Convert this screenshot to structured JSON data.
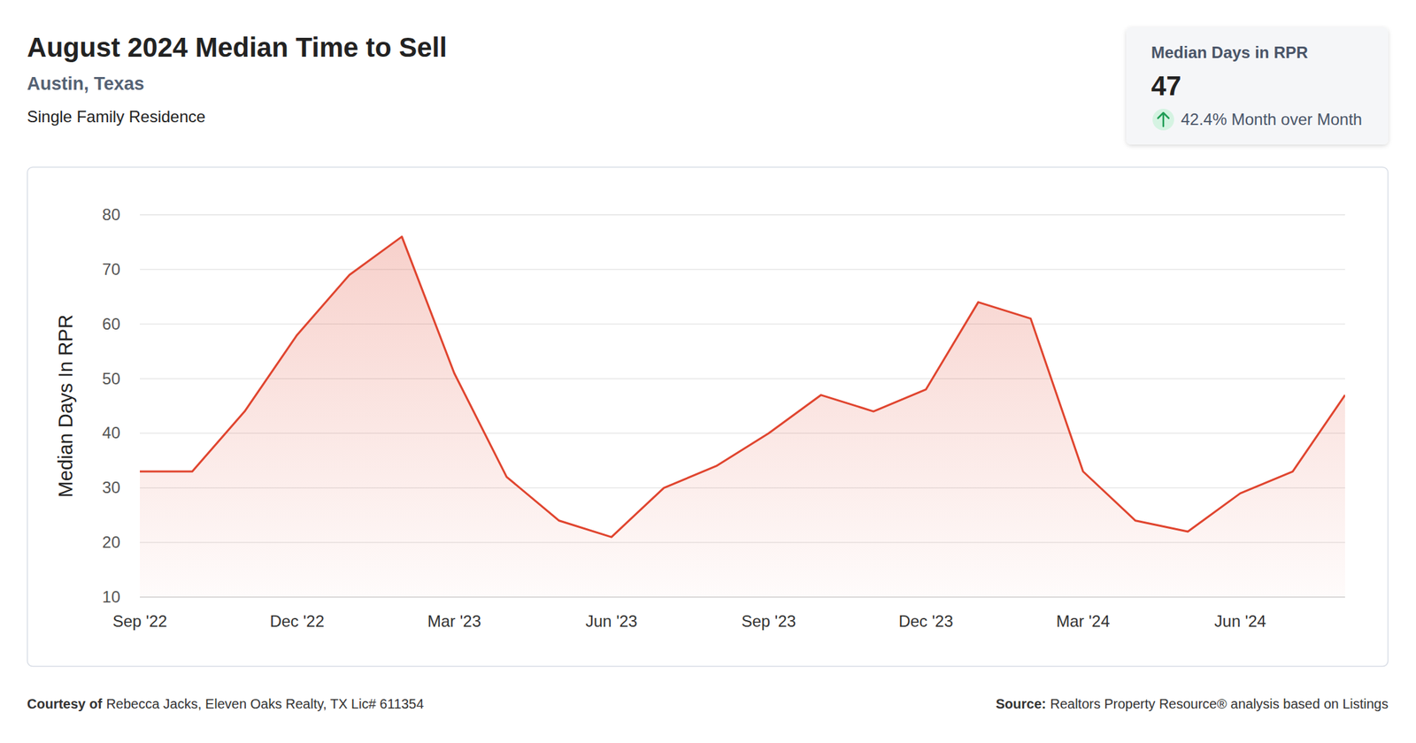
{
  "chart_data": {
    "type": "line",
    "title": "August 2024 Median Time to Sell",
    "subtitle": "Austin, Texas",
    "description": "Single Family Residence",
    "y_label": "Median Days In RPR",
    "categories": [
      "Sep '22",
      null,
      null,
      "Dec '22",
      null,
      null,
      "Mar '23",
      null,
      null,
      "Jun '23",
      null,
      null,
      "Sep '23",
      null,
      null,
      "Dec '23",
      null,
      null,
      "Mar '24",
      null,
      null,
      "Jun '24",
      null,
      null
    ],
    "values": [
      33,
      33,
      44,
      58,
      69,
      76,
      51,
      32,
      24,
      21,
      30,
      34,
      40,
      47,
      44,
      48,
      64,
      61,
      33,
      24,
      22,
      29,
      33,
      47
    ],
    "color": "#e0452f",
    "ylim": [
      10,
      80
    ],
    "yticks": [
      10,
      20,
      30,
      40,
      50,
      60,
      70,
      80
    ],
    "grid": true
  },
  "card": {
    "label": "Median Days in RPR",
    "value": 47,
    "change": "42.4% Month over Month"
  },
  "footer": {
    "courtesy_label": "Courtesy of",
    "courtesy": "Rebecca Jacks, Eleven Oaks Realty, TX Lic# 611354",
    "source_label": "Source:",
    "source": "Realtors Property Resource® analysis based on Listings"
  }
}
